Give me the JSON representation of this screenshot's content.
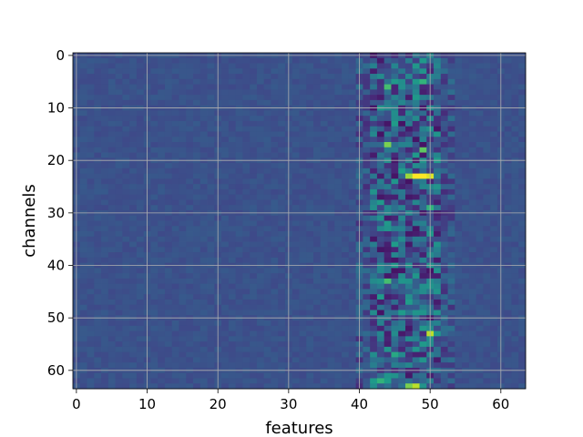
{
  "chart_data": {
    "type": "heatmap",
    "title": "",
    "xlabel": "features",
    "ylabel": "channels",
    "x_range": [
      0,
      63
    ],
    "y_range": [
      0,
      63
    ],
    "y_inverted": true,
    "grid": true,
    "colormap": "viridis",
    "x_ticks": [
      "0",
      "10",
      "20",
      "30",
      "40",
      "50",
      "60"
    ],
    "y_ticks": [
      "0",
      "10",
      "20",
      "30",
      "40",
      "50",
      "60"
    ],
    "background_level": 0.25,
    "value_range": [
      0,
      1
    ],
    "bright_cells": [
      {
        "x": 48,
        "y": 23,
        "v": 1.0
      },
      {
        "x": 49,
        "y": 23,
        "v": 1.0
      },
      {
        "x": 50,
        "y": 23,
        "v": 0.95
      },
      {
        "x": 47,
        "y": 23,
        "v": 0.85
      },
      {
        "x": 48,
        "y": 63,
        "v": 0.9
      },
      {
        "x": 47,
        "y": 63,
        "v": 0.8
      },
      {
        "x": 50,
        "y": 53,
        "v": 0.9
      },
      {
        "x": 44,
        "y": 17,
        "v": 0.8
      },
      {
        "x": 49,
        "y": 18,
        "v": 0.75
      },
      {
        "x": 44,
        "y": 6,
        "v": 0.7
      },
      {
        "x": 49,
        "y": 5,
        "v": 0.65
      },
      {
        "x": 44,
        "y": 43,
        "v": 0.7
      },
      {
        "x": 50,
        "y": 29,
        "v": 0.65
      },
      {
        "x": 43,
        "y": 62,
        "v": 0.65
      },
      {
        "x": 45,
        "y": 57,
        "v": 0.6
      }
    ]
  }
}
